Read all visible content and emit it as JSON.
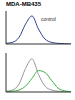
{
  "chart_data": [
    {
      "type": "line",
      "title": "MDA-MB435",
      "x": [
        0,
        1,
        2,
        3,
        4,
        5,
        6,
        7,
        8,
        9,
        10
      ],
      "series": [
        {
          "color": "#2f3f8f",
          "values": [
            2,
            5,
            20,
            60,
            85,
            45,
            15,
            5,
            2,
            1,
            0
          ]
        }
      ],
      "xlim": [
        0,
        10
      ],
      "ylim": [
        0,
        100
      ],
      "xticks": [
        0,
        10
      ],
      "yticks": [
        0,
        100
      ],
      "tick_labels": false,
      "annotations": [
        {
          "text": "control",
          "x": 4.6,
          "y": 75
        }
      ]
    },
    {
      "type": "line",
      "x": [
        0,
        1,
        2,
        3,
        4,
        5,
        6,
        7,
        8,
        9,
        10
      ],
      "series": [
        {
          "color": "#999999",
          "values": [
            2,
            5,
            20,
            60,
            85,
            45,
            15,
            5,
            2,
            1,
            0
          ]
        },
        {
          "color": "#3cb043",
          "values": [
            1,
            2,
            5,
            15,
            35,
            55,
            50,
            30,
            10,
            3,
            1
          ]
        }
      ],
      "xlim": [
        0,
        10
      ],
      "ylim": [
        0,
        100
      ],
      "xticks": [
        0,
        10
      ],
      "yticks": [
        0,
        100
      ],
      "tick_labels": false
    }
  ]
}
